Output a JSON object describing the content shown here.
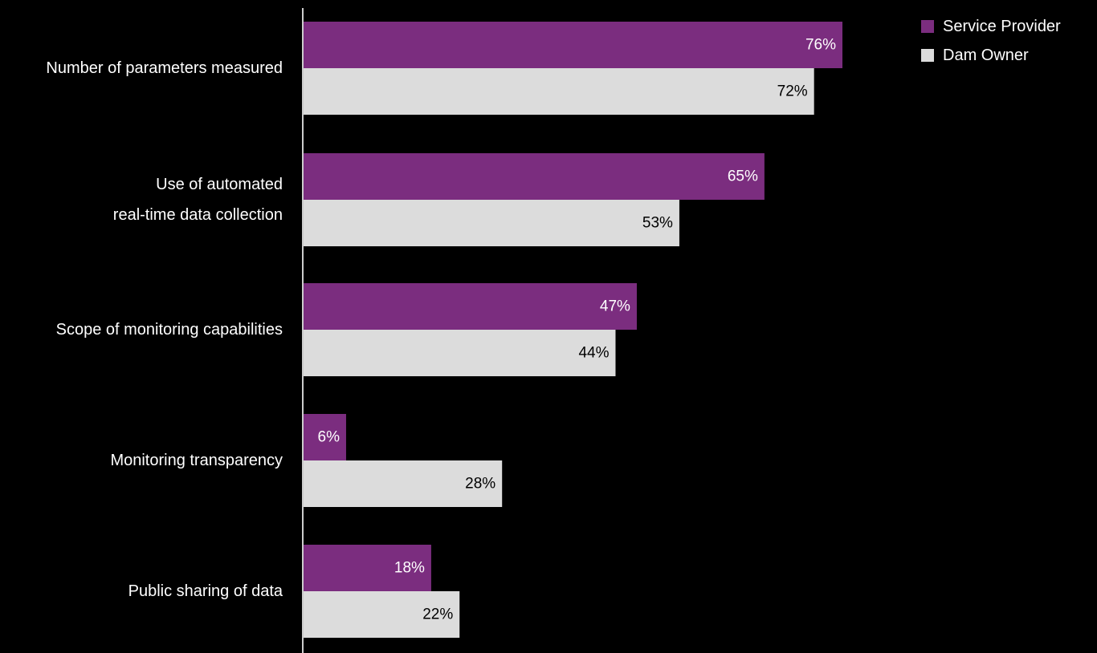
{
  "chart_data": {
    "type": "bar",
    "orientation": "horizontal",
    "categories": [
      [
        "Number of parameters measured"
      ],
      [
        "Use of automated",
        "real-time data collection"
      ],
      [
        "Scope of monitoring capabilities"
      ],
      [
        "Monitoring transparency"
      ],
      [
        "Public sharing of data"
      ]
    ],
    "series": [
      {
        "name": "Service Provider",
        "color": "#7b2d7f",
        "label_color": "#ffffff",
        "values": [
          76,
          65,
          47,
          6,
          18
        ],
        "value_labels": [
          "76%",
          "65%",
          "47%",
          "6%",
          "18%"
        ]
      },
      {
        "name": "Dam Owner",
        "color": "#dcdcdc",
        "label_color": "#000000",
        "values": [
          72,
          53,
          44,
          28,
          22
        ],
        "value_labels": [
          "72%",
          "53%",
          "44%",
          "28%",
          "22%"
        ]
      }
    ],
    "title": "",
    "xlabel": "",
    "ylabel": "",
    "xlim": [
      0,
      100
    ],
    "grid": false,
    "legend": "top-right",
    "background": "#000000",
    "axis_color": "#cccccc"
  }
}
